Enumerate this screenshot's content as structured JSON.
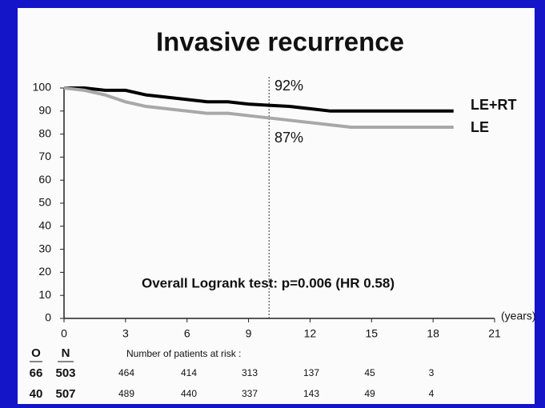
{
  "chart_data": {
    "type": "line",
    "title": "Invasive recurrence",
    "x_label": "(years)",
    "xlim": [
      0,
      21
    ],
    "xticks": [
      0,
      3,
      6,
      9,
      12,
      15,
      18,
      21
    ],
    "ylim": [
      0,
      100
    ],
    "yticks": [
      0,
      10,
      20,
      30,
      40,
      50,
      60,
      70,
      80,
      90,
      100
    ],
    "x": [
      0,
      1,
      2,
      3,
      4,
      5,
      6,
      7,
      8,
      9,
      10,
      11,
      12,
      13,
      14,
      15,
      16,
      17,
      18,
      19
    ],
    "series": [
      {
        "name": "LE+RT",
        "color": "#000000",
        "values": [
          100,
          100,
          99,
          99,
          97,
          96,
          95,
          94,
          94,
          93,
          92.5,
          92,
          91,
          90,
          90,
          90,
          90,
          90,
          90,
          90
        ]
      },
      {
        "name": "LE",
        "color": "#a8a8a8",
        "values": [
          100,
          99,
          97,
          94,
          92,
          91,
          90,
          89,
          89,
          88,
          87,
          86,
          85,
          84,
          83,
          83,
          83,
          83,
          83,
          83
        ]
      }
    ],
    "reference_x": 10,
    "annotations": [
      "92%",
      "87%",
      "Overall Logrank test: p=0.006 (HR 0.58)"
    ]
  },
  "risk_table": {
    "headers": [
      "O",
      "N",
      "Number of patients at risk :"
    ],
    "rows": [
      [
        "66",
        "503",
        "464",
        "414",
        "313",
        "137",
        "45",
        "3"
      ],
      [
        "40",
        "507",
        "489",
        "440",
        "337",
        "143",
        "49",
        "4"
      ]
    ]
  }
}
